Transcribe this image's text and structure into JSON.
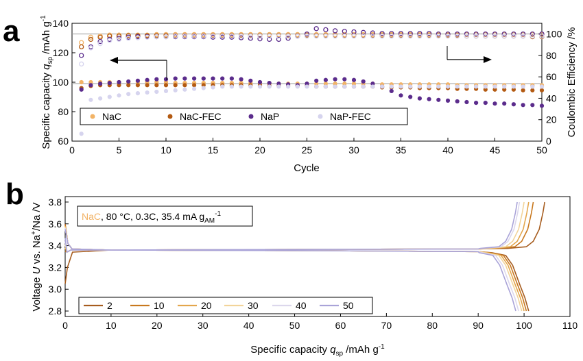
{
  "chart_data": [
    {
      "panel": "a",
      "type": "scatter",
      "xlabel": "Cycle",
      "ylabel_left": "Specific capacity q_sp /mAh g^-1",
      "ylabel_right": "Coulombic Efficiency /%",
      "xlim": [
        0,
        50
      ],
      "ylim_left": [
        60,
        140
      ],
      "ylim_right": [
        0,
        110
      ],
      "x_ticks": [
        0,
        5,
        10,
        15,
        20,
        25,
        30,
        35,
        40,
        45,
        50
      ],
      "y_ticks_left": [
        60,
        80,
        100,
        120,
        140
      ],
      "y_ticks_right": [
        0,
        20,
        40,
        60,
        80,
        100
      ],
      "reference_lines": {
        "capacity": 99,
        "efficiency": 100
      },
      "legend_placement": "center-left",
      "cycles": [
        1,
        2,
        3,
        4,
        5,
        6,
        7,
        8,
        9,
        10,
        11,
        12,
        13,
        14,
        15,
        16,
        17,
        18,
        19,
        20,
        21,
        22,
        23,
        24,
        25,
        26,
        27,
        28,
        29,
        30,
        31,
        32,
        33,
        34,
        35,
        36,
        37,
        38,
        39,
        40,
        41,
        42,
        43,
        44,
        45,
        46,
        47,
        48,
        49,
        50
      ],
      "series": [
        {
          "name": "NaC",
          "color": "#f2b366",
          "capacity": [
            100,
            100,
            100,
            100,
            100,
            100,
            100,
            100,
            100,
            100,
            99.5,
            99.5,
            99.5,
            99.5,
            99.5,
            99.5,
            99.5,
            99.5,
            99.5,
            99.5,
            99,
            99,
            99,
            99,
            99,
            99,
            99,
            99,
            99,
            99,
            99,
            99,
            98.5,
            98.5,
            98.5,
            98.5,
            98.5,
            98.5,
            98.5,
            98.5,
            98,
            98,
            98,
            98,
            98,
            98,
            98,
            98,
            98,
            98
          ],
          "efficiency": [
            92,
            97,
            98,
            99,
            99,
            99,
            99,
            99,
            99.5,
            99.5,
            99.5,
            99.5,
            99.5,
            99.5,
            99.5,
            99.5,
            99.5,
            99.5,
            99.5,
            99.5,
            99.5,
            99.5,
            99.5,
            99.5,
            99.5,
            99.5,
            99.5,
            99.5,
            99.5,
            99.5,
            99.5,
            99.5,
            99.5,
            99.5,
            99.5,
            99.5,
            99.5,
            99.5,
            99.5,
            99.5,
            99.5,
            99.5,
            99.5,
            99.5,
            99.5,
            99.5,
            99.5,
            99.5,
            99.5,
            99.5
          ]
        },
        {
          "name": "NaC-FEC",
          "color": "#b35a12",
          "capacity": [
            96,
            97.5,
            98,
            98,
            98,
            98,
            98,
            98,
            98,
            98,
            98,
            98,
            98,
            98,
            98,
            98,
            98,
            98,
            98,
            98,
            97.5,
            97.5,
            97.5,
            97.5,
            97.5,
            97,
            97,
            97,
            97,
            97,
            97,
            97,
            96.5,
            96.5,
            96.5,
            96.5,
            96,
            96,
            96,
            96,
            95.5,
            95.5,
            95.5,
            95,
            95,
            95,
            95,
            94.5,
            94.5,
            94.5
          ],
          "efficiency": [
            88,
            95,
            97,
            98,
            98,
            98.5,
            98.5,
            98.5,
            98.5,
            98.5,
            98.5,
            98.5,
            98.5,
            98.5,
            98.5,
            98.5,
            98.5,
            98.5,
            98.5,
            98.5,
            98.5,
            98.5,
            98.5,
            98.5,
            98.5,
            98.5,
            98.5,
            98.5,
            98.5,
            98.5,
            98.5,
            98.5,
            98.5,
            98.5,
            98.5,
            98.5,
            98.5,
            98.5,
            98.5,
            98.5,
            98.5,
            98,
            98,
            98,
            98,
            98,
            98,
            98,
            97.5,
            97.5
          ]
        },
        {
          "name": "NaP",
          "color": "#5b2c8c",
          "capacity": [
            95,
            98,
            99,
            99.5,
            100,
            100.5,
            101,
            101.5,
            102,
            102,
            102.5,
            102.5,
            102.5,
            102.5,
            102.5,
            102.5,
            102.5,
            102,
            101,
            100,
            99.5,
            99,
            98.5,
            98,
            99,
            101,
            101.5,
            102,
            102,
            101.5,
            100.5,
            99,
            97,
            94,
            91,
            90,
            89,
            88.5,
            88,
            87.5,
            87,
            86.5,
            86,
            86,
            85.5,
            85.5,
            85,
            84.5,
            84.5,
            84
          ],
          "efficiency": [
            80,
            88,
            93,
            95,
            96,
            97,
            97.5,
            97.5,
            97.5,
            97.5,
            97.5,
            97.5,
            97.5,
            97.5,
            97,
            97,
            97,
            96.5,
            96,
            95.5,
            95,
            95,
            96,
            98,
            100,
            105,
            104,
            103,
            102.5,
            102,
            101.5,
            101,
            100.5,
            100.5,
            100.5,
            100.5,
            100.5,
            100.5,
            100,
            100,
            100,
            100,
            100,
            100,
            100,
            100,
            100,
            100,
            100,
            100
          ]
        },
        {
          "name": "NaP-FEC",
          "color": "#d6d4ee",
          "capacity": [
            65,
            88,
            89,
            90,
            91,
            92,
            92.5,
            93,
            93.5,
            94,
            94.5,
            95,
            95.5,
            96,
            96.5,
            97,
            97,
            97,
            97,
            97,
            97,
            97,
            97,
            97,
            97,
            97,
            97,
            97,
            97,
            97,
            97,
            97,
            97,
            97,
            97,
            97,
            97,
            97,
            97,
            97,
            97,
            97,
            97,
            97,
            97,
            97,
            97,
            97,
            97,
            97
          ],
          "efficiency": [
            72,
            87,
            91,
            94,
            95,
            96,
            96.5,
            97,
            97.5,
            97.5,
            98,
            98,
            98,
            98,
            98,
            98,
            98,
            98,
            98,
            98,
            98,
            98,
            98,
            98,
            98,
            98,
            98,
            98,
            98,
            98,
            98,
            98,
            98,
            98,
            98,
            98,
            98,
            98,
            98,
            98,
            98,
            98,
            98,
            98,
            98,
            98,
            98,
            98,
            98,
            98
          ]
        }
      ]
    },
    {
      "panel": "b",
      "type": "line",
      "xlabel": "Specific capacity q_sp /mAh g^-1",
      "ylabel": "Voltage U vs. Na+/Na /V",
      "xlim": [
        0,
        110
      ],
      "ylim": [
        2.75,
        3.85
      ],
      "x_ticks": [
        0,
        10,
        20,
        30,
        40,
        50,
        60,
        70,
        80,
        90,
        100,
        110
      ],
      "y_ticks": [
        2.8,
        3.0,
        3.2,
        3.4,
        3.6,
        3.8
      ],
      "annotation": {
        "material": "NaC",
        "conditions": ", 80 °C, 0.3C, 35.4 mA g",
        "sub": "AM",
        "sup": "-1"
      },
      "legend_placement": "bottom-left",
      "series": [
        {
          "name": "2",
          "color": "#a65c1e",
          "charge_end": 104.5,
          "discharge_end": 101
        },
        {
          "name": "10",
          "color": "#c8781e",
          "charge_end": 102,
          "discharge_end": 100.5
        },
        {
          "name": "20",
          "color": "#e3a64c",
          "charge_end": 101,
          "discharge_end": 100
        },
        {
          "name": "30",
          "color": "#f2d49a",
          "charge_end": 100,
          "discharge_end": 99.5
        },
        {
          "name": "40",
          "color": "#dcd7ec",
          "charge_end": 99,
          "discharge_end": 98.8
        },
        {
          "name": "50",
          "color": "#a9a3d8",
          "charge_end": 98.5,
          "discharge_end": 98.2
        }
      ]
    }
  ],
  "labels": {
    "panel_a": "a",
    "panel_b": "b",
    "a_ylabel_pre": "Specific capacity ",
    "a_ylabel_q": "q",
    "a_ylabel_sub": "sp",
    "a_ylabel_post": " /mAh g",
    "a_ylabel_sup": "-1",
    "a_ylabel_right": "Coulombic Efficiency /%",
    "a_xlabel": "Cycle",
    "b_ylabel_pre": "Voltage ",
    "b_ylabel_u": "U",
    "b_ylabel_mid": " vs. Na",
    "b_ylabel_sup": "+",
    "b_ylabel_post": "/Na /V",
    "b_xlabel_pre": "Specific capacity ",
    "b_xlabel_q": "q",
    "b_xlabel_sub": "sp",
    "b_xlabel_post": " /mAh g",
    "b_xlabel_sup": "-1"
  }
}
